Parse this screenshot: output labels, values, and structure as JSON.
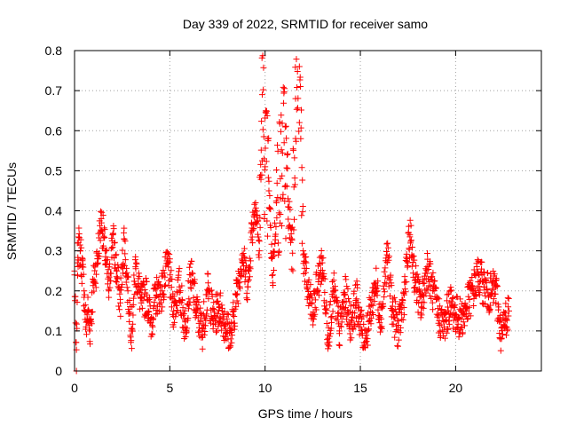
{
  "chart_data": {
    "type": "scatter",
    "title": "Day 339 of 2022, SRMTID for receiver samo",
    "xlabel": "GPS time / hours",
    "ylabel": "SRMTID / TECUs",
    "xlim": [
      0,
      24.5
    ],
    "ylim": [
      0,
      0.8
    ],
    "xticks": [
      0,
      5,
      10,
      15,
      20
    ],
    "yticks": [
      0,
      0.1,
      0.2,
      0.3,
      0.4,
      0.5,
      0.6,
      0.7,
      0.8
    ],
    "xtick_labels": [
      "0",
      "5",
      "10",
      "15",
      "20"
    ],
    "ytick_labels": [
      "0",
      "0.1",
      "0.2",
      "0.3",
      "0.4",
      "0.5",
      "0.6",
      "0.7",
      "0.8"
    ],
    "grid": true,
    "marker": "+",
    "color": "#ff0000",
    "series": [
      {
        "name": "SRMTID",
        "data_note": "dense time series sampled roughly every 30 s; representative values read from the figure",
        "points": [
          [
            0.0,
            0.24
          ],
          [
            0.1,
            0.0
          ],
          [
            0.15,
            0.27
          ],
          [
            0.2,
            0.32
          ],
          [
            0.3,
            0.3
          ],
          [
            0.4,
            0.26
          ],
          [
            0.5,
            0.2
          ],
          [
            0.6,
            0.11
          ],
          [
            0.7,
            0.15
          ],
          [
            0.8,
            0.1
          ],
          [
            1.0,
            0.22
          ],
          [
            1.2,
            0.28
          ],
          [
            1.4,
            0.38
          ],
          [
            1.6,
            0.3
          ],
          [
            1.8,
            0.2
          ],
          [
            2.0,
            0.34
          ],
          [
            2.2,
            0.25
          ],
          [
            2.4,
            0.17
          ],
          [
            2.6,
            0.33
          ],
          [
            2.8,
            0.2
          ],
          [
            3.0,
            0.1
          ],
          [
            3.2,
            0.26
          ],
          [
            3.5,
            0.17
          ],
          [
            3.8,
            0.19
          ],
          [
            4.0,
            0.12
          ],
          [
            4.3,
            0.19
          ],
          [
            4.6,
            0.2
          ],
          [
            4.9,
            0.27
          ],
          [
            5.2,
            0.15
          ],
          [
            5.5,
            0.21
          ],
          [
            5.8,
            0.11
          ],
          [
            6.1,
            0.24
          ],
          [
            6.4,
            0.15
          ],
          [
            6.7,
            0.1
          ],
          [
            7.0,
            0.2
          ],
          [
            7.3,
            0.13
          ],
          [
            7.6,
            0.16
          ],
          [
            7.9,
            0.12
          ],
          [
            8.2,
            0.08
          ],
          [
            8.5,
            0.19
          ],
          [
            8.8,
            0.29
          ],
          [
            9.1,
            0.21
          ],
          [
            9.3,
            0.35
          ],
          [
            9.5,
            0.42
          ],
          [
            9.7,
            0.3
          ],
          [
            9.85,
            0.69
          ],
          [
            10.0,
            0.51
          ],
          [
            10.2,
            0.45
          ],
          [
            10.4,
            0.24
          ],
          [
            10.6,
            0.42
          ],
          [
            10.8,
            0.48
          ],
          [
            11.0,
            0.57
          ],
          [
            11.2,
            0.41
          ],
          [
            11.4,
            0.33
          ],
          [
            11.6,
            0.68
          ],
          [
            11.8,
            0.76
          ],
          [
            12.0,
            0.3
          ],
          [
            12.2,
            0.21
          ],
          [
            12.5,
            0.14
          ],
          [
            12.8,
            0.23
          ],
          [
            13.0,
            0.27
          ],
          [
            13.3,
            0.09
          ],
          [
            13.6,
            0.2
          ],
          [
            13.9,
            0.1
          ],
          [
            14.2,
            0.19
          ],
          [
            14.5,
            0.12
          ],
          [
            14.8,
            0.18
          ],
          [
            15.2,
            0.07
          ],
          [
            15.5,
            0.14
          ],
          [
            15.8,
            0.22
          ],
          [
            16.1,
            0.13
          ],
          [
            16.4,
            0.29
          ],
          [
            16.7,
            0.15
          ],
          [
            17.0,
            0.1
          ],
          [
            17.3,
            0.19
          ],
          [
            17.6,
            0.34
          ],
          [
            17.9,
            0.22
          ],
          [
            18.2,
            0.16
          ],
          [
            18.5,
            0.26
          ],
          [
            18.8,
            0.2
          ],
          [
            19.1,
            0.14
          ],
          [
            19.4,
            0.11
          ],
          [
            19.7,
            0.17
          ],
          [
            20.0,
            0.14
          ],
          [
            20.3,
            0.13
          ],
          [
            20.6,
            0.16
          ],
          [
            20.9,
            0.2
          ],
          [
            21.2,
            0.24
          ],
          [
            21.5,
            0.21
          ],
          [
            21.8,
            0.19
          ],
          [
            22.1,
            0.21
          ],
          [
            22.4,
            0.08
          ],
          [
            22.6,
            0.13
          ],
          [
            22.8,
            0.15
          ]
        ]
      }
    ]
  }
}
